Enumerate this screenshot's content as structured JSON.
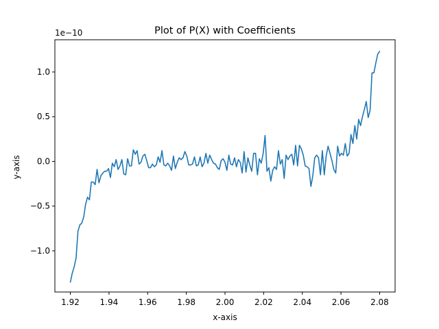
{
  "chart_data": {
    "type": "line",
    "title": "Plot of P(X) with Coefficients",
    "xlabel": "x-axis",
    "ylabel": "y-axis",
    "y_offset_label": "1e−10",
    "xlim": [
      1.912,
      2.088
    ],
    "ylim": [
      -1.46,
      1.36
    ],
    "x_ticks": [
      1.92,
      1.94,
      1.96,
      1.98,
      2.0,
      2.02,
      2.04,
      2.06,
      2.08
    ],
    "x_tick_labels": [
      "1.92",
      "1.94",
      "1.96",
      "1.98",
      "2.00",
      "2.02",
      "2.04",
      "2.06",
      "2.08"
    ],
    "y_ticks": [
      -1.0,
      -0.5,
      0.0,
      0.5,
      1.0
    ],
    "y_tick_labels": [
      "−1.0",
      "−0.5",
      "0.0",
      "0.5",
      "1.0"
    ],
    "series": [
      {
        "color": "#1f77b4",
        "x_start": 1.92,
        "x_end": 2.08,
        "values": [
          -1.35,
          -1.25,
          -1.18,
          -1.08,
          -0.78,
          -0.71,
          -0.69,
          -0.62,
          -0.48,
          -0.4,
          -0.43,
          -0.23,
          -0.23,
          -0.26,
          -0.09,
          -0.24,
          -0.16,
          -0.13,
          -0.11,
          -0.11,
          -0.08,
          -0.18,
          -0.02,
          -0.06,
          0.02,
          -0.09,
          -0.05,
          0.02,
          -0.14,
          -0.15,
          0.03,
          -0.05,
          -0.05,
          0.13,
          0.08,
          0.12,
          -0.03,
          -0.01,
          0.06,
          0.08,
          0.01,
          -0.07,
          -0.07,
          -0.03,
          -0.06,
          -0.04,
          0.05,
          -0.01,
          0.12,
          -0.04,
          -0.05,
          -0.02,
          -0.05,
          -0.1,
          0.06,
          -0.08,
          -0.01,
          0.04,
          0.02,
          0.04,
          0.11,
          0.06,
          -0.04,
          -0.04,
          -0.03,
          0.05,
          -0.05,
          -0.04,
          0.05,
          -0.06,
          -0.02,
          0.09,
          -0.02,
          0.07,
          0.02,
          -0.02,
          -0.03,
          -0.07,
          -0.09,
          0.01,
          0.03,
          -0.01,
          -0.1,
          0.07,
          -0.03,
          -0.04,
          0.04,
          -0.06,
          0.02,
          -0.01,
          -0.13,
          0.11,
          -0.12,
          0.04,
          -0.04,
          -0.11,
          0.09,
          0.09,
          -0.15,
          0.03,
          -0.02,
          0.09,
          0.29,
          -0.11,
          -0.07,
          -0.22,
          -0.1,
          -0.06,
          -0.09,
          0.12,
          -0.03,
          0.02,
          -0.19,
          0.07,
          0.02,
          0.06,
          0.08,
          -0.04,
          0.18,
          -0.05,
          0.18,
          0.14,
          0.07,
          -0.05,
          -0.06,
          -0.08,
          -0.28,
          -0.16,
          0.04,
          0.07,
          0.04,
          -0.15,
          0.12,
          -0.15,
          0.06,
          0.17,
          0.09,
          0.01,
          -0.09,
          -0.13,
          0.17,
          0.06,
          0.09,
          0.07,
          0.2,
          0.06,
          0.09,
          0.3,
          0.2,
          0.4,
          0.25,
          0.47,
          0.4,
          0.5,
          0.58,
          0.67,
          0.49,
          0.57,
          0.99,
          0.99,
          1.1,
          1.2,
          1.23
        ]
      }
    ]
  }
}
